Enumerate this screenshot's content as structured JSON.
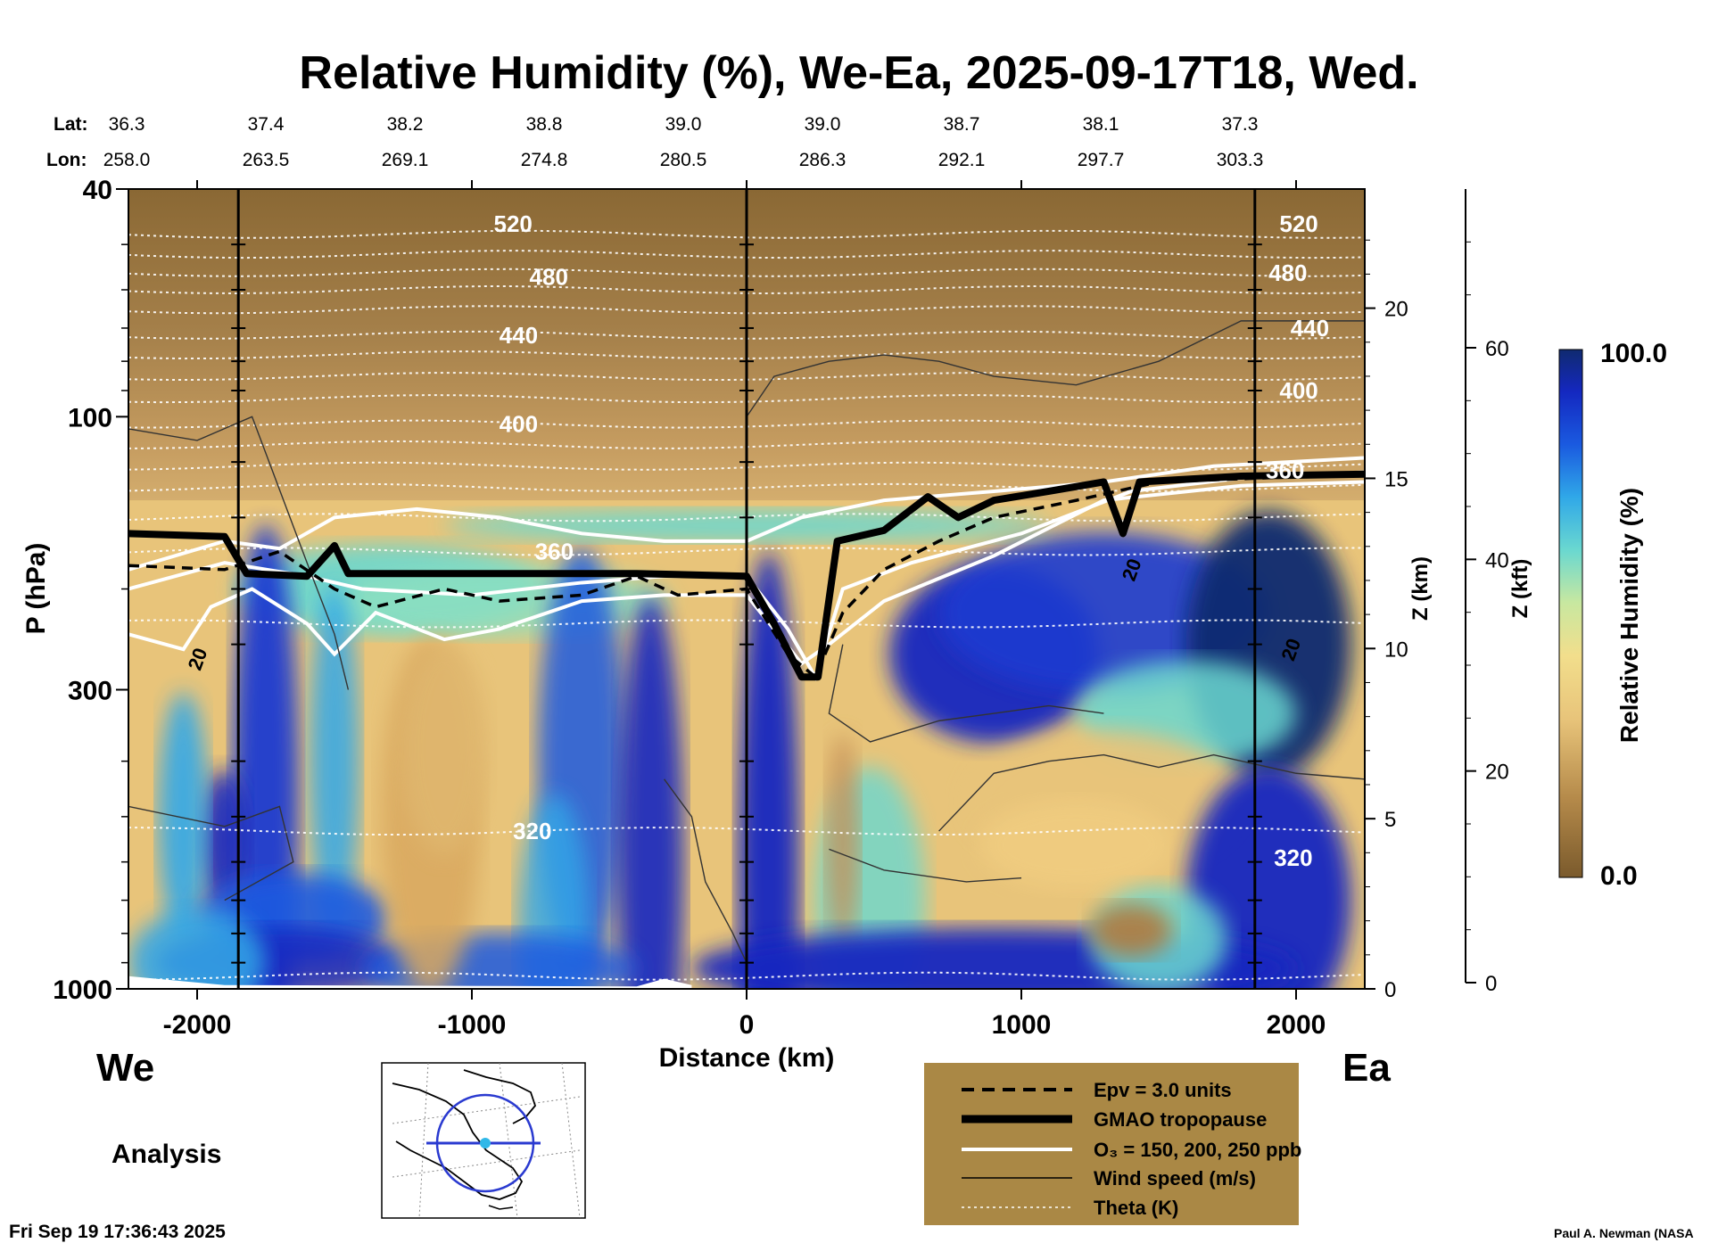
{
  "title": "Relative Humidity (%), We-Ea, 2025-09-17T18, Wed.",
  "lat_label": "Lat:",
  "lon_label": "Lon:",
  "lat_values": [
    "36.3",
    "37.4",
    "38.2",
    "38.8",
    "39.0",
    "39.0",
    "38.7",
    "38.1",
    "37.3"
  ],
  "lon_values": [
    "258.0",
    "263.5",
    "269.1",
    "274.8",
    "280.5",
    "286.3",
    "292.1",
    "297.7",
    "303.3"
  ],
  "direction_left": "We",
  "direction_right": "Ea",
  "analysis_label": "Analysis",
  "timestamp": "Fri Sep 19 17:36:43 2025",
  "credit": "Paul A. Newman (NASA",
  "legend": {
    "epv": "Epv = 3.0 units",
    "tropopause": "GMAO tropopause",
    "o3": "O₃ = 150, 200, 250 ppb",
    "wind": "Wind speed (m/s)",
    "theta": "Theta (K)"
  },
  "colorbar": {
    "label": "Relative Humidity (%)",
    "max": "100.0",
    "min": "0.0"
  },
  "chart_data": {
    "type": "heatmap",
    "xlabel": "Distance (km)",
    "ylabel": "P (hPa)",
    "z_km_label": "Z (km)",
    "z_kft_label": "Z (kft)",
    "x_ticks": [
      -2000,
      -1000,
      0,
      1000,
      2000
    ],
    "x_tick_labels": [
      "-2000",
      "-1000",
      "0",
      "1000",
      "2000"
    ],
    "xlim": [
      -2250,
      2250
    ],
    "y_log_scale": true,
    "ylim": [
      1000,
      40
    ],
    "y_tick_labels": [
      "40",
      "100",
      "300",
      "1000"
    ],
    "z_km_ticks": [
      0,
      5,
      10,
      15,
      20
    ],
    "z_kft_ticks": [
      0,
      20,
      40,
      60
    ],
    "theta_labels": [
      {
        "text": "520",
        "x": -850,
        "p": 46
      },
      {
        "text": "480",
        "x": -720,
        "p": 57
      },
      {
        "text": "440",
        "x": -830,
        "p": 72
      },
      {
        "text": "400",
        "x": -830,
        "p": 103
      },
      {
        "text": "360",
        "x": -700,
        "p": 172
      },
      {
        "text": "320",
        "x": -780,
        "p": 530
      },
      {
        "text": "520",
        "x": 2010,
        "p": 46
      },
      {
        "text": "480",
        "x": 1970,
        "p": 56
      },
      {
        "text": "440",
        "x": 2050,
        "p": 70
      },
      {
        "text": "400",
        "x": 2010,
        "p": 90
      },
      {
        "text": "360",
        "x": 1960,
        "p": 124
      },
      {
        "text": "320",
        "x": 1990,
        "p": 590
      }
    ],
    "wind_labels": [
      {
        "text": "20",
        "x": -2000,
        "p": 265
      },
      {
        "text": "20",
        "x": 1400,
        "p": 185
      },
      {
        "text": "20",
        "x": 1980,
        "p": 255
      }
    ],
    "colorbar_range": [
      0.0,
      100.0
    ],
    "tropopause_hpa": [
      {
        "x": -2250,
        "p": 160
      },
      {
        "x": -1900,
        "p": 162
      },
      {
        "x": -1820,
        "p": 188
      },
      {
        "x": -1600,
        "p": 190
      },
      {
        "x": -1500,
        "p": 168
      },
      {
        "x": -1450,
        "p": 188
      },
      {
        "x": -1000,
        "p": 188
      },
      {
        "x": -400,
        "p": 188
      },
      {
        "x": 0,
        "p": 190
      },
      {
        "x": 100,
        "p": 230
      },
      {
        "x": 200,
        "p": 285
      },
      {
        "x": 260,
        "p": 285
      },
      {
        "x": 330,
        "p": 165
      },
      {
        "x": 500,
        "p": 158
      },
      {
        "x": 660,
        "p": 138
      },
      {
        "x": 770,
        "p": 150
      },
      {
        "x": 900,
        "p": 140
      },
      {
        "x": 1100,
        "p": 135
      },
      {
        "x": 1300,
        "p": 130
      },
      {
        "x": 1370,
        "p": 160
      },
      {
        "x": 1430,
        "p": 130
      },
      {
        "x": 1800,
        "p": 127
      },
      {
        "x": 2250,
        "p": 126
      }
    ]
  }
}
